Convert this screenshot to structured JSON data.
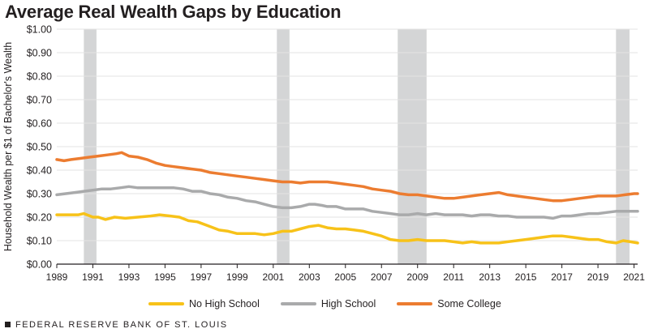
{
  "chart_data": {
    "type": "line",
    "title": "Average Real Wealth Gaps by Education",
    "ylabel": "Household Wealth per $1 of Bachelor's Wealth",
    "xlabel": "",
    "xlim": [
      1989,
      2021.2
    ],
    "ylim": [
      0,
      1
    ],
    "yticks": [
      {
        "value": 0.0,
        "label": "$0.00"
      },
      {
        "value": 0.1,
        "label": "$0.10"
      },
      {
        "value": 0.2,
        "label": "$0.20"
      },
      {
        "value": 0.3,
        "label": "$0.30"
      },
      {
        "value": 0.4,
        "label": "$0.40"
      },
      {
        "value": 0.5,
        "label": "$0.50"
      },
      {
        "value": 0.6,
        "label": "$0.60"
      },
      {
        "value": 0.7,
        "label": "$0.70"
      },
      {
        "value": 0.8,
        "label": "$0.80"
      },
      {
        "value": 0.9,
        "label": "$0.90"
      },
      {
        "value": 1.0,
        "label": "$1.00"
      }
    ],
    "xticks": [
      {
        "value": 1989,
        "label": "1989"
      },
      {
        "value": 1991,
        "label": "1991"
      },
      {
        "value": 1993,
        "label": "1993"
      },
      {
        "value": 1995,
        "label": "1995"
      },
      {
        "value": 1997,
        "label": "1997"
      },
      {
        "value": 1999,
        "label": "1999"
      },
      {
        "value": 2001,
        "label": "2001"
      },
      {
        "value": 2003,
        "label": "2003"
      },
      {
        "value": 2005,
        "label": "2005"
      },
      {
        "value": 2007,
        "label": "2007"
      },
      {
        "value": 2009,
        "label": "2009"
      },
      {
        "value": 2011,
        "label": "2011"
      },
      {
        "value": 2013,
        "label": "2013"
      },
      {
        "value": 2015,
        "label": "2015"
      },
      {
        "value": 2017,
        "label": "2017"
      },
      {
        "value": 2019,
        "label": "2019"
      },
      {
        "value": 2021,
        "label": "2021"
      }
    ],
    "recessions": [
      [
        1990.5,
        1991.2
      ],
      [
        2001.2,
        2001.9
      ],
      [
        2007.9,
        2009.5
      ],
      [
        2020.0,
        2020.75
      ]
    ],
    "series": [
      {
        "name": "No High School",
        "color": "#f7c219",
        "points": [
          [
            1989,
            0.21
          ],
          [
            1990.2,
            0.21
          ],
          [
            1990.5,
            0.215
          ],
          [
            1991,
            0.2
          ],
          [
            1991.3,
            0.2
          ],
          [
            1991.7,
            0.19
          ],
          [
            1992.2,
            0.2
          ],
          [
            1992.8,
            0.195
          ],
          [
            1993.5,
            0.2
          ],
          [
            1994.2,
            0.205
          ],
          [
            1994.7,
            0.21
          ],
          [
            1995.3,
            0.205
          ],
          [
            1995.8,
            0.2
          ],
          [
            1996.3,
            0.185
          ],
          [
            1996.8,
            0.18
          ],
          [
            1997.5,
            0.16
          ],
          [
            1998,
            0.145
          ],
          [
            1998.5,
            0.14
          ],
          [
            1999,
            0.13
          ],
          [
            1999.5,
            0.13
          ],
          [
            2000,
            0.13
          ],
          [
            2000.5,
            0.125
          ],
          [
            2001,
            0.13
          ],
          [
            2001.5,
            0.14
          ],
          [
            2002,
            0.14
          ],
          [
            2002.5,
            0.15
          ],
          [
            2003,
            0.16
          ],
          [
            2003.5,
            0.165
          ],
          [
            2004,
            0.155
          ],
          [
            2004.5,
            0.15
          ],
          [
            2005,
            0.15
          ],
          [
            2005.5,
            0.145
          ],
          [
            2006,
            0.14
          ],
          [
            2006.5,
            0.13
          ],
          [
            2007,
            0.12
          ],
          [
            2007.5,
            0.105
          ],
          [
            2008,
            0.1
          ],
          [
            2008.5,
            0.1
          ],
          [
            2009,
            0.105
          ],
          [
            2009.5,
            0.1
          ],
          [
            2010,
            0.1
          ],
          [
            2010.5,
            0.1
          ],
          [
            2011,
            0.095
          ],
          [
            2011.5,
            0.09
          ],
          [
            2012,
            0.095
          ],
          [
            2012.5,
            0.09
          ],
          [
            2013,
            0.09
          ],
          [
            2013.5,
            0.09
          ],
          [
            2014,
            0.095
          ],
          [
            2014.5,
            0.1
          ],
          [
            2015,
            0.105
          ],
          [
            2015.5,
            0.11
          ],
          [
            2016,
            0.115
          ],
          [
            2016.5,
            0.12
          ],
          [
            2017,
            0.12
          ],
          [
            2017.5,
            0.115
          ],
          [
            2018,
            0.11
          ],
          [
            2018.5,
            0.105
          ],
          [
            2019,
            0.105
          ],
          [
            2019.5,
            0.095
          ],
          [
            2020,
            0.09
          ],
          [
            2020.4,
            0.1
          ],
          [
            2020.8,
            0.095
          ],
          [
            2021.2,
            0.09
          ]
        ]
      },
      {
        "name": "High School",
        "color": "#a9aaab",
        "points": [
          [
            1989,
            0.295
          ],
          [
            1989.5,
            0.3
          ],
          [
            1990,
            0.305
          ],
          [
            1990.5,
            0.31
          ],
          [
            1991,
            0.315
          ],
          [
            1991.5,
            0.32
          ],
          [
            1992,
            0.32
          ],
          [
            1992.5,
            0.325
          ],
          [
            1993,
            0.33
          ],
          [
            1993.5,
            0.325
          ],
          [
            1994,
            0.325
          ],
          [
            1994.5,
            0.325
          ],
          [
            1995,
            0.325
          ],
          [
            1995.5,
            0.325
          ],
          [
            1996,
            0.32
          ],
          [
            1996.5,
            0.31
          ],
          [
            1997,
            0.31
          ],
          [
            1997.5,
            0.3
          ],
          [
            1998,
            0.295
          ],
          [
            1998.5,
            0.285
          ],
          [
            1999,
            0.28
          ],
          [
            1999.5,
            0.27
          ],
          [
            2000,
            0.265
          ],
          [
            2000.5,
            0.255
          ],
          [
            2001,
            0.245
          ],
          [
            2001.5,
            0.24
          ],
          [
            2002,
            0.24
          ],
          [
            2002.5,
            0.245
          ],
          [
            2003,
            0.255
          ],
          [
            2003.3,
            0.255
          ],
          [
            2003.7,
            0.25
          ],
          [
            2004,
            0.245
          ],
          [
            2004.5,
            0.245
          ],
          [
            2005,
            0.235
          ],
          [
            2005.5,
            0.235
          ],
          [
            2006,
            0.235
          ],
          [
            2006.5,
            0.225
          ],
          [
            2007,
            0.22
          ],
          [
            2007.5,
            0.215
          ],
          [
            2008,
            0.21
          ],
          [
            2008.5,
            0.21
          ],
          [
            2009,
            0.215
          ],
          [
            2009.5,
            0.21
          ],
          [
            2010,
            0.215
          ],
          [
            2010.5,
            0.21
          ],
          [
            2011,
            0.21
          ],
          [
            2011.5,
            0.21
          ],
          [
            2012,
            0.205
          ],
          [
            2012.5,
            0.21
          ],
          [
            2013,
            0.21
          ],
          [
            2013.5,
            0.205
          ],
          [
            2014,
            0.205
          ],
          [
            2014.5,
            0.2
          ],
          [
            2015,
            0.2
          ],
          [
            2015.5,
            0.2
          ],
          [
            2016,
            0.2
          ],
          [
            2016.5,
            0.195
          ],
          [
            2017,
            0.205
          ],
          [
            2017.5,
            0.205
          ],
          [
            2018,
            0.21
          ],
          [
            2018.5,
            0.215
          ],
          [
            2019,
            0.215
          ],
          [
            2019.5,
            0.22
          ],
          [
            2020,
            0.225
          ],
          [
            2020.5,
            0.225
          ],
          [
            2021,
            0.225
          ],
          [
            2021.2,
            0.225
          ]
        ]
      },
      {
        "name": "Some College",
        "color": "#ec7c30",
        "points": [
          [
            1989,
            0.445
          ],
          [
            1989.4,
            0.44
          ],
          [
            1989.8,
            0.445
          ],
          [
            1990.3,
            0.45
          ],
          [
            1990.8,
            0.455
          ],
          [
            1991.3,
            0.46
          ],
          [
            1991.8,
            0.465
          ],
          [
            1992.3,
            0.47
          ],
          [
            1992.6,
            0.475
          ],
          [
            1993,
            0.46
          ],
          [
            1993.5,
            0.455
          ],
          [
            1994,
            0.445
          ],
          [
            1994.5,
            0.43
          ],
          [
            1995,
            0.42
          ],
          [
            1995.5,
            0.415
          ],
          [
            1996,
            0.41
          ],
          [
            1996.5,
            0.405
          ],
          [
            1997,
            0.4
          ],
          [
            1997.5,
            0.39
          ],
          [
            1998,
            0.385
          ],
          [
            1998.5,
            0.38
          ],
          [
            1999,
            0.375
          ],
          [
            1999.5,
            0.37
          ],
          [
            2000,
            0.365
          ],
          [
            2000.5,
            0.36
          ],
          [
            2001,
            0.355
          ],
          [
            2001.5,
            0.35
          ],
          [
            2002,
            0.35
          ],
          [
            2002.5,
            0.345
          ],
          [
            2003,
            0.35
          ],
          [
            2003.5,
            0.35
          ],
          [
            2004,
            0.35
          ],
          [
            2004.5,
            0.345
          ],
          [
            2005,
            0.34
          ],
          [
            2005.5,
            0.335
          ],
          [
            2006,
            0.33
          ],
          [
            2006.5,
            0.32
          ],
          [
            2007,
            0.315
          ],
          [
            2007.5,
            0.31
          ],
          [
            2008,
            0.3
          ],
          [
            2008.5,
            0.295
          ],
          [
            2009,
            0.295
          ],
          [
            2009.5,
            0.29
          ],
          [
            2010,
            0.285
          ],
          [
            2010.5,
            0.28
          ],
          [
            2011,
            0.28
          ],
          [
            2011.5,
            0.285
          ],
          [
            2012,
            0.29
          ],
          [
            2012.5,
            0.295
          ],
          [
            2013,
            0.3
          ],
          [
            2013.5,
            0.305
          ],
          [
            2014,
            0.295
          ],
          [
            2014.5,
            0.29
          ],
          [
            2015,
            0.285
          ],
          [
            2015.5,
            0.28
          ],
          [
            2016,
            0.275
          ],
          [
            2016.5,
            0.27
          ],
          [
            2017,
            0.27
          ],
          [
            2017.5,
            0.275
          ],
          [
            2018,
            0.28
          ],
          [
            2018.5,
            0.285
          ],
          [
            2019,
            0.29
          ],
          [
            2019.5,
            0.29
          ],
          [
            2020,
            0.29
          ],
          [
            2020.5,
            0.295
          ],
          [
            2021,
            0.3
          ],
          [
            2021.2,
            0.3
          ]
        ]
      }
    ]
  },
  "legend": [
    {
      "label": "No High School",
      "color": "#f7c219"
    },
    {
      "label": "High School",
      "color": "#a9aaab"
    },
    {
      "label": "Some College",
      "color": "#ec7c30"
    }
  ],
  "source": "FEDERAL RESERVE BANK OF ST. LOUIS"
}
